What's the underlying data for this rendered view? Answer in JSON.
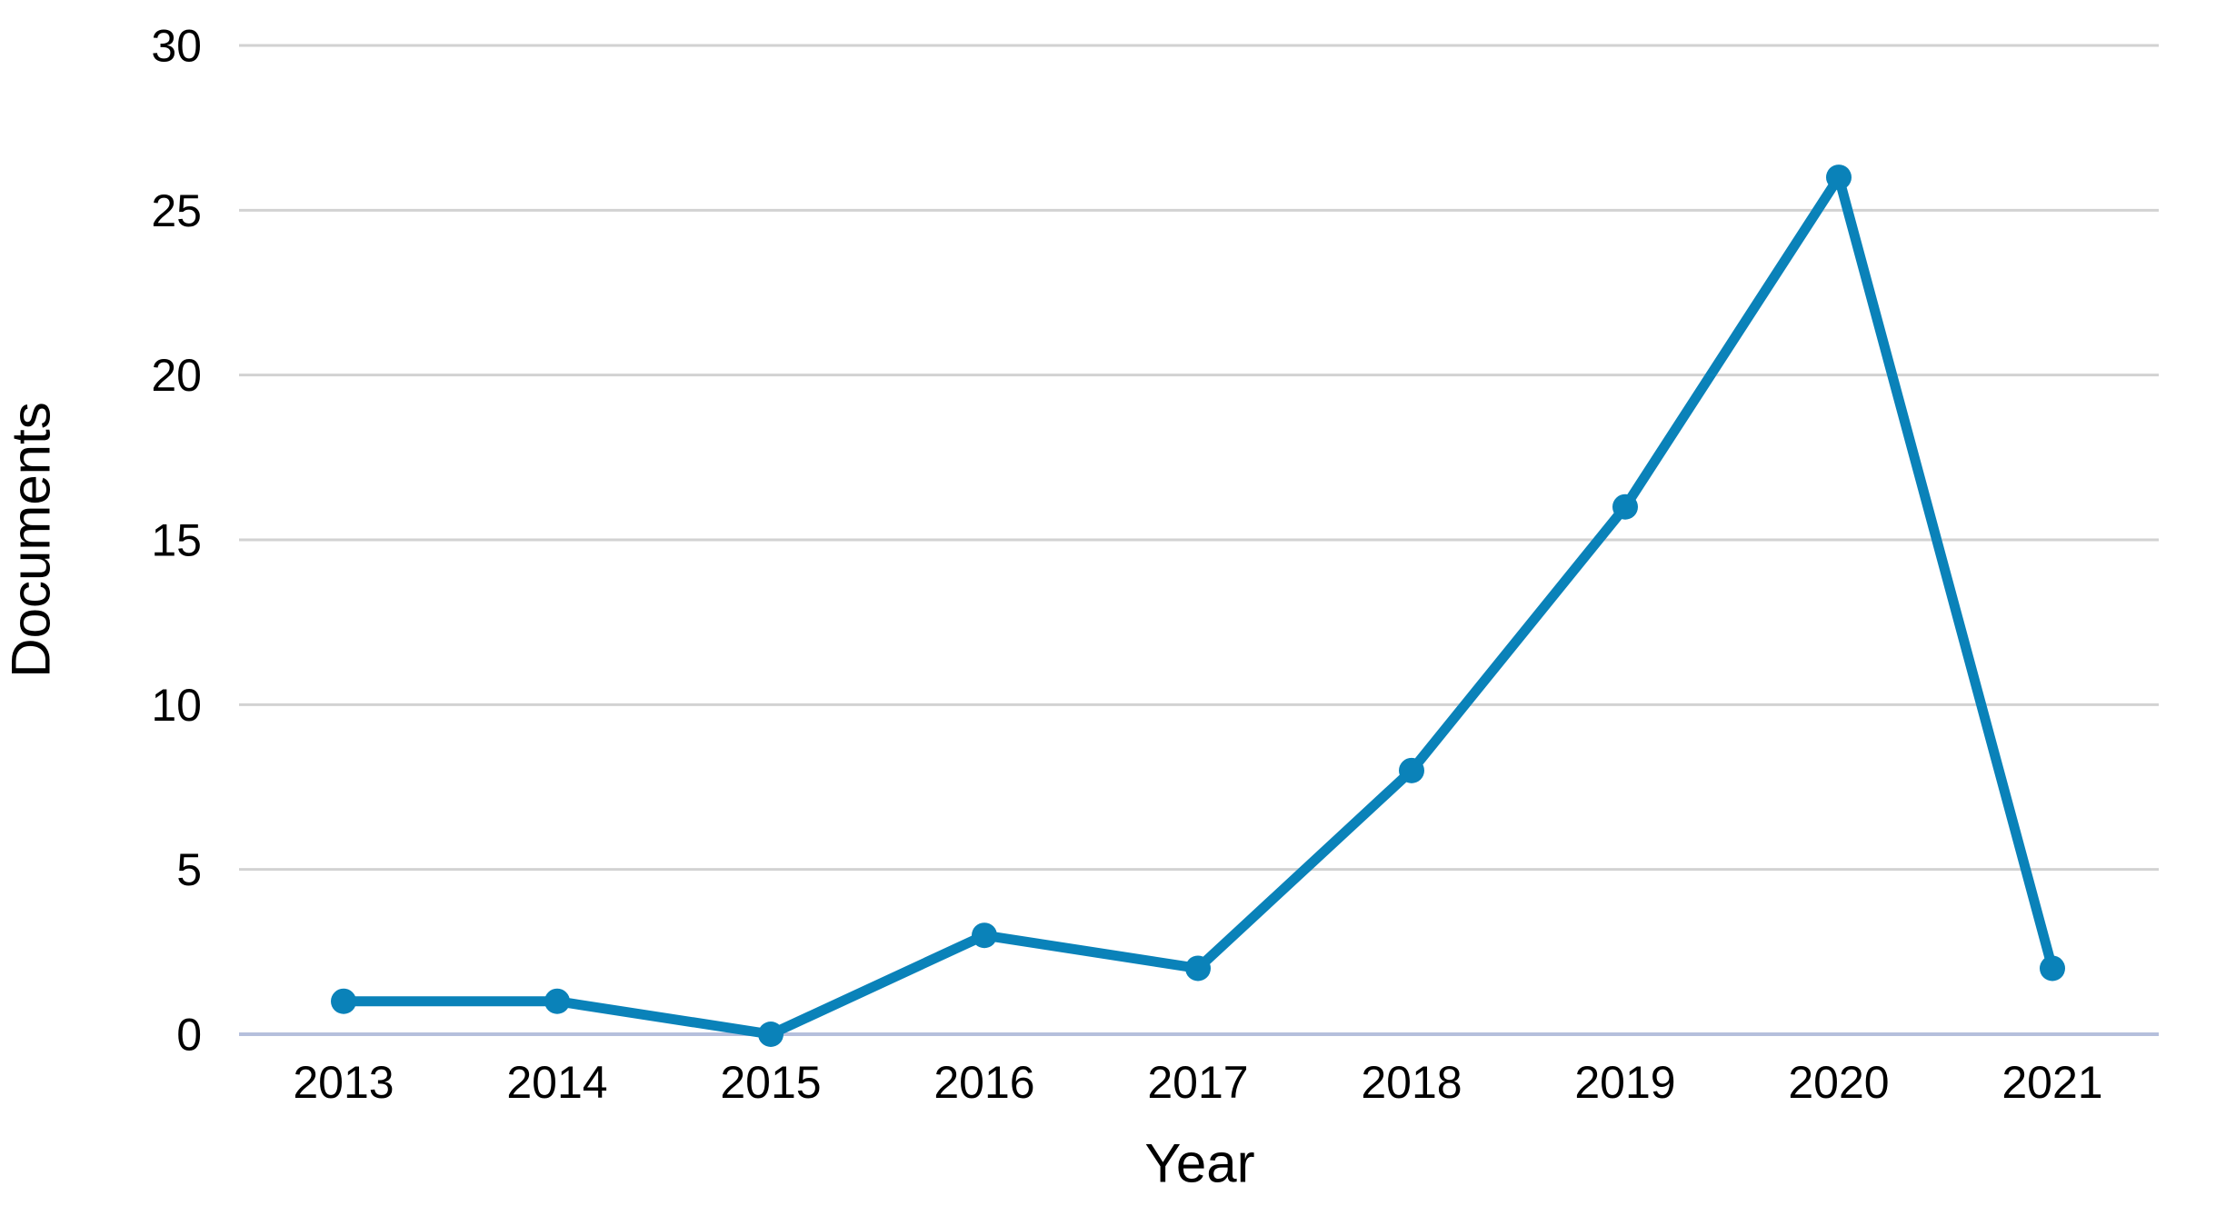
{
  "chart_data": {
    "type": "line",
    "title": "",
    "xlabel": "Year",
    "ylabel": "Documents",
    "categories": [
      2013,
      2014,
      2015,
      2016,
      2017,
      2018,
      2019,
      2020,
      2021
    ],
    "series": [
      {
        "name": "Documents",
        "values": [
          1,
          1,
          0,
          3,
          2,
          8,
          16,
          26,
          2
        ]
      }
    ],
    "yticks": [
      0,
      5,
      10,
      15,
      20,
      25,
      30
    ],
    "ylim": [
      0,
      30
    ],
    "grid": true,
    "legend_position": "none",
    "line_color": "#0a82b9",
    "marker_color": "#0a82b9",
    "grid_color": "#d2d2d2",
    "zero_axis_color": "#b5bfdc",
    "text_color": "#000000",
    "background_color": "#ffffff"
  }
}
